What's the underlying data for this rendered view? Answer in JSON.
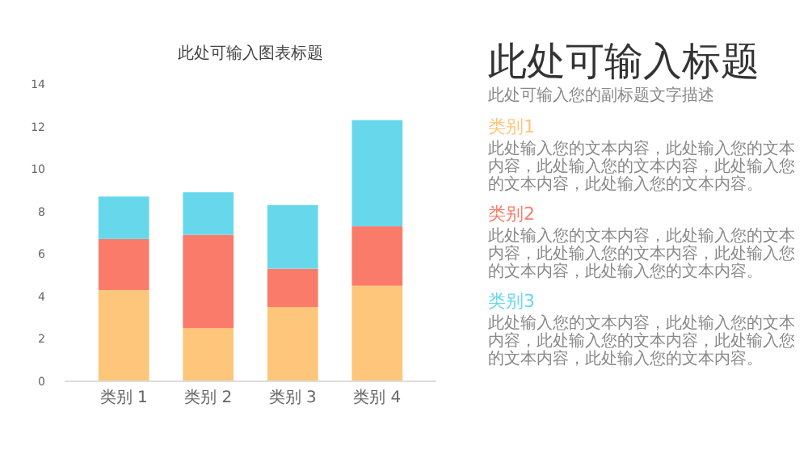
{
  "chart_data": [
    {
      "type": "bar",
      "title": "此处可输入图表标题",
      "categories": [
        "类别 1",
        "类别 2",
        "类别 3",
        "类别 4"
      ],
      "stacked": true,
      "ylim": [
        0,
        14
      ],
      "yticks": [
        0,
        2,
        4,
        6,
        8,
        10,
        12,
        14
      ],
      "series": [
        {
          "color": "#fdc67a",
          "values": [
            4.3,
            2.5,
            3.5,
            4.5
          ]
        },
        {
          "color": "#fb7b6b",
          "values": [
            2.4,
            4.4,
            1.8,
            2.8
          ]
        },
        {
          "color": "#67d8ec",
          "values": [
            2.0,
            2.0,
            3.0,
            5.0
          ]
        }
      ]
    },
    {
      "type": "other",
      "title": "此处可输入标题",
      "subtitle": "此处可输入您的副标题文字描述",
      "colors": [
        "#fdc67a",
        "#fb7b6b",
        "#67d8ec"
      ],
      "annotations": [
        "类别1",
        "此处输入您的文本内容，此处输入您的文本内容，此处输入您的文本内容，此处输入您的文本内容，此处输入您的文本内容。",
        "类别2",
        "此处输入您的文本内容，此处输入您的文本内容，此处输入您的文本内容，此处输入您的文本内容，此处输入您的文本内容。",
        "类别3",
        "此处输入您的文本内容，此处输入您的文本内容，此处输入您的文本内容，此处输入您的文本内容，此处输入您的文本内容。"
      ]
    }
  ]
}
